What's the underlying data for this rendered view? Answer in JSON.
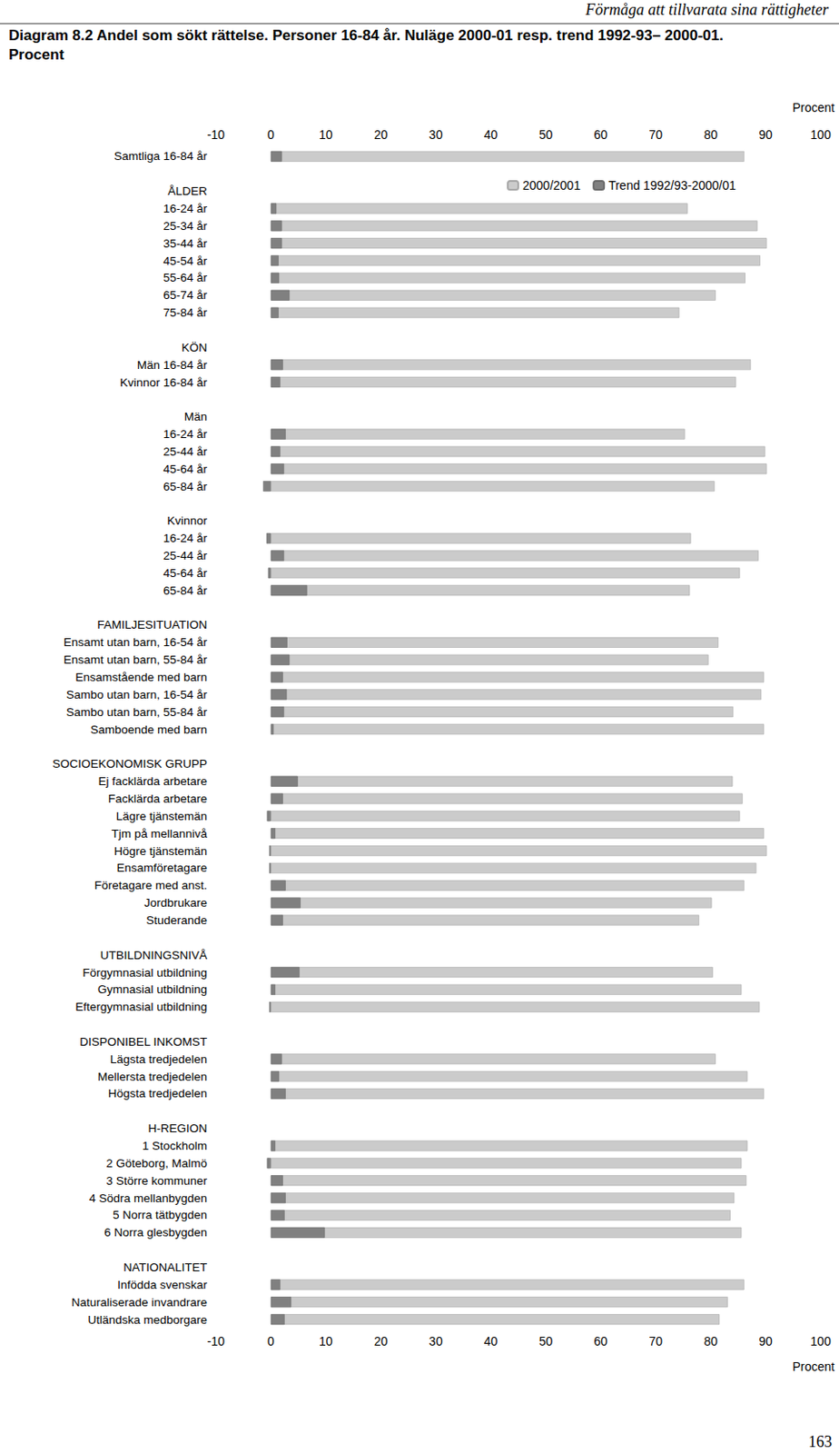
{
  "chart_data": {
    "type": "bar",
    "orientation": "horizontal",
    "page_header": "Förmåga att tillvarata sina rättigheter",
    "title": "Diagram 8.2 Andel som sökt rättelse. Personer 16-84 år. Nuläge 2000-01 resp. trend 1992-93– 2000-01. Procent",
    "page_number": "163",
    "xlabel": "Procent",
    "xlim": [
      -10,
      100
    ],
    "xticks": [
      -10,
      0,
      10,
      20,
      30,
      40,
      50,
      60,
      70,
      80,
      90,
      100
    ],
    "grid": false,
    "legend": "top right",
    "categories": [
      "Samtliga 16-84 år",
      null,
      "ÅLDER",
      "16-24 år",
      "25-34 år",
      "35-44 år",
      "45-54 år",
      "55-64 år",
      "65-74 år",
      "75-84 år",
      null,
      "KÖN",
      "Män 16-84 år",
      "Kvinnor 16-84 år",
      null,
      "Män",
      "16-24 år",
      "25-44 år",
      "45-64 år",
      "65-84 år",
      null,
      "Kvinnor",
      "16-24 år",
      "25-44 år",
      "45-64 år",
      "65-84 år",
      null,
      "FAMILJESITUATION",
      "Ensamt utan barn, 16-54 år",
      "Ensamt utan barn, 55-84 år",
      "Ensamstående med barn",
      "Sambo utan barn, 16-54 år",
      "Sambo utan barn, 55-84 år",
      "Samboende med barn",
      null,
      "SOCIOEKONOMISK GRUPP",
      "Ej facklärda arbetare",
      "Facklärda arbetare",
      "Lägre tjänstemän",
      "Tjm på mellannivå",
      "Högre tjänstemän",
      "Ensamföretagare",
      "Företagare med anst.",
      "Jordbrukare",
      "Studerande",
      null,
      "UTBILDNINGSNIVÅ",
      "Förgymnasial utbildning",
      "Gymnasial utbildning",
      "Eftergymnasial utbildning",
      null,
      "DISPONIBEL INKOMST",
      "Lägsta tredjedelen",
      "Mellersta tredjedelen",
      "Högsta tredjedelen",
      null,
      "H-REGION",
      "1 Stockholm",
      "2 Göteborg, Malmö",
      "3 Större kommuner",
      "4 Södra mellanbygden",
      "5 Norra tätbygden",
      "6 Norra glesbygden",
      null,
      "NATIONALITET",
      "Infödda svenskar",
      "Naturaliserade invandrare",
      "Utländska medborgare"
    ],
    "series": [
      {
        "name": "2000/2001",
        "color": "#cbcbcb",
        "values": [
          86.1,
          null,
          null,
          75.8,
          88.5,
          90.2,
          89.0,
          86.3,
          80.9,
          74.3,
          null,
          null,
          87.3,
          84.6,
          null,
          null,
          75.3,
          89.9,
          90.2,
          80.7,
          null,
          null,
          76.4,
          88.7,
          85.3,
          76.2,
          null,
          null,
          81.4,
          79.6,
          89.7,
          89.2,
          84.1,
          89.7,
          null,
          null,
          84.0,
          85.8,
          85.3,
          89.7,
          90.2,
          88.3,
          86.1,
          80.2,
          77.9,
          null,
          null,
          80.4,
          85.6,
          88.9,
          null,
          null,
          80.9,
          86.7,
          89.7,
          null,
          null,
          86.7,
          85.6,
          86.5,
          84.3,
          83.6,
          85.6,
          null,
          null,
          86.1,
          83.1,
          81.6
        ]
      },
      {
        "name": "Trend 1992/93-2000/01",
        "color": "#808080",
        "values": [
          2.0,
          null,
          null,
          1.0,
          2.0,
          2.0,
          1.4,
          1.5,
          3.4,
          1.4,
          null,
          null,
          2.2,
          1.7,
          null,
          null,
          2.7,
          1.7,
          2.4,
          -1.4,
          null,
          null,
          -0.8,
          2.4,
          -0.5,
          6.6,
          null,
          null,
          3.0,
          3.4,
          2.2,
          2.9,
          2.4,
          0.5,
          null,
          null,
          4.9,
          2.2,
          -0.7,
          0.8,
          -0.3,
          -0.3,
          2.7,
          5.4,
          2.2,
          null,
          null,
          5.2,
          0.8,
          -0.3,
          null,
          null,
          2.0,
          1.5,
          2.7,
          null,
          null,
          0.8,
          -0.7,
          2.2,
          2.7,
          2.5,
          9.8,
          null,
          null,
          1.7,
          3.7,
          2.5
        ]
      }
    ]
  }
}
